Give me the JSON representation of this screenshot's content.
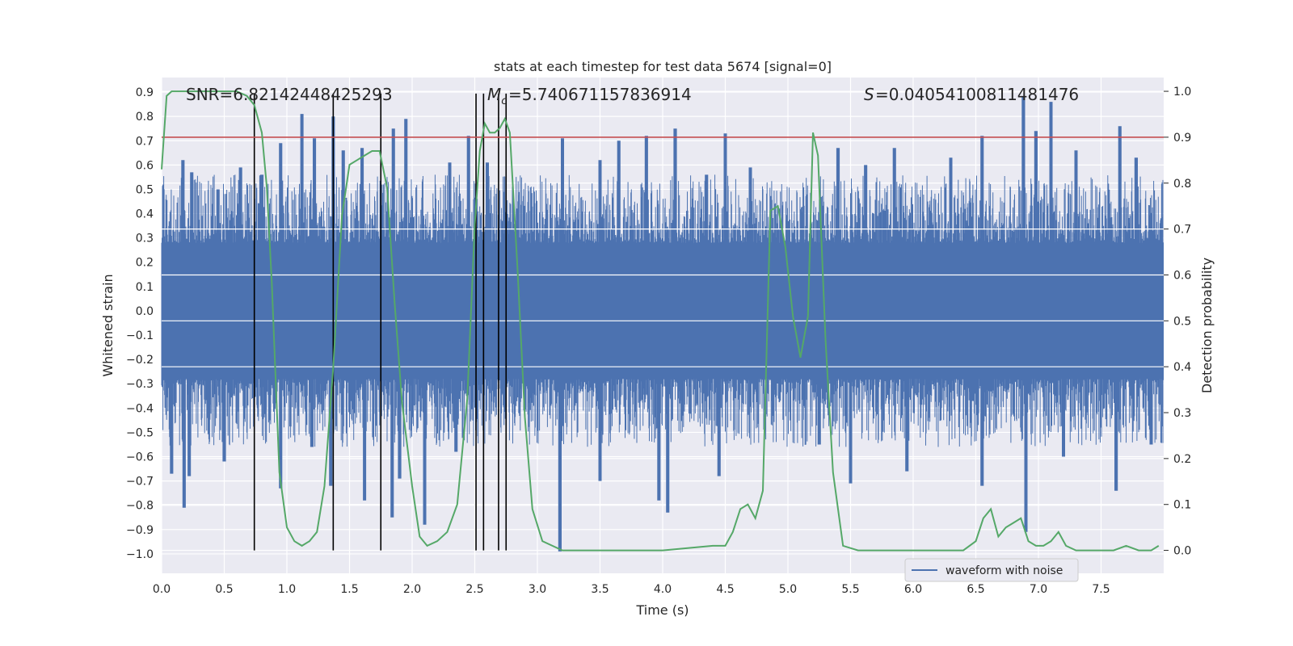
{
  "chart_data": {
    "type": "line",
    "title": "stats at each timestep for test data 5674 [signal=0]",
    "xlabel": "Time (s)",
    "ylabel": "Whitened strain",
    "ylabel_right": "Detection probability",
    "xlim": [
      0,
      8
    ],
    "ylim_left": [
      -1.08,
      0.96
    ],
    "ylim_right": [
      -0.05,
      1.03
    ],
    "x_ticks": [
      "0.0",
      "0.5",
      "1.0",
      "1.5",
      "2.0",
      "2.5",
      "3.0",
      "3.5",
      "4.0",
      "4.5",
      "5.0",
      "5.5",
      "6.0",
      "6.5",
      "7.0",
      "7.5"
    ],
    "y_ticks_left": [
      "0.9",
      "0.8",
      "0.7",
      "0.6",
      "0.5",
      "0.4",
      "0.3",
      "0.2",
      "0.1",
      "0.0",
      "-0.1",
      "-0.2",
      "-0.3",
      "-0.4",
      "-0.5",
      "-0.6",
      "-0.7",
      "-0.8",
      "-0.9",
      "-1.0"
    ],
    "y_ticks_right": [
      "1.0",
      "0.9",
      "0.8",
      "0.7",
      "0.6",
      "0.5",
      "0.4",
      "0.3",
      "0.2",
      "0.1",
      "0.0"
    ],
    "annotations": {
      "snr": "SNR=6.82142448425293",
      "mc": "=5.740671157836914",
      "s": "=0.04054100811481476"
    },
    "threshold": 0.9,
    "grid": true,
    "legend_position": "lower-right",
    "colors": {
      "waveform": "#4c72b0",
      "probability": "#55a868",
      "threshold": "#c44e52",
      "markers": "#000000",
      "background": "#eaeaf2",
      "grid": "#ffffff"
    },
    "vertical_markers_x": [
      0.74,
      1.37,
      1.75,
      2.51,
      2.57,
      2.69,
      2.75
    ],
    "series": [
      {
        "name": "waveform with noise",
        "axis": "left",
        "description_kind": "noise",
        "envelope_peaks": [
          {
            "x": 0.17,
            "y": 0.62
          },
          {
            "x": 0.24,
            "y": 0.57
          },
          {
            "x": 0.45,
            "y": 0.5
          },
          {
            "x": 0.63,
            "y": 0.59
          },
          {
            "x": 0.8,
            "y": 0.56
          },
          {
            "x": 0.95,
            "y": 0.69
          },
          {
            "x": 1.12,
            "y": 0.81
          },
          {
            "x": 1.22,
            "y": 0.71
          },
          {
            "x": 1.37,
            "y": 0.8
          },
          {
            "x": 1.45,
            "y": 0.66
          },
          {
            "x": 1.6,
            "y": 0.67
          },
          {
            "x": 1.85,
            "y": 0.75
          },
          {
            "x": 1.95,
            "y": 0.79
          },
          {
            "x": 2.3,
            "y": 0.61
          },
          {
            "x": 2.45,
            "y": 0.72
          },
          {
            "x": 2.6,
            "y": 0.61
          },
          {
            "x": 3.2,
            "y": 0.71
          },
          {
            "x": 3.5,
            "y": 0.62
          },
          {
            "x": 3.65,
            "y": 0.7
          },
          {
            "x": 3.87,
            "y": 0.72
          },
          {
            "x": 4.1,
            "y": 0.75
          },
          {
            "x": 4.35,
            "y": 0.56
          },
          {
            "x": 4.5,
            "y": 0.73
          },
          {
            "x": 4.7,
            "y": 0.59
          },
          {
            "x": 5.4,
            "y": 0.67
          },
          {
            "x": 5.62,
            "y": 0.6
          },
          {
            "x": 5.85,
            "y": 0.67
          },
          {
            "x": 6.3,
            "y": 0.63
          },
          {
            "x": 6.55,
            "y": 0.72
          },
          {
            "x": 6.88,
            "y": 0.88
          },
          {
            "x": 6.98,
            "y": 0.74
          },
          {
            "x": 7.1,
            "y": 0.86
          },
          {
            "x": 7.3,
            "y": 0.66
          },
          {
            "x": 7.65,
            "y": 0.76
          },
          {
            "x": 7.78,
            "y": 0.63
          }
        ],
        "envelope_troughs": [
          {
            "x": 0.08,
            "y": -0.67
          },
          {
            "x": 0.18,
            "y": -0.81
          },
          {
            "x": 0.22,
            "y": -0.68
          },
          {
            "x": 0.5,
            "y": -0.62
          },
          {
            "x": 0.95,
            "y": -0.73
          },
          {
            "x": 1.2,
            "y": -0.56
          },
          {
            "x": 1.35,
            "y": -0.72
          },
          {
            "x": 1.62,
            "y": -0.78
          },
          {
            "x": 1.84,
            "y": -0.85
          },
          {
            "x": 1.9,
            "y": -0.69
          },
          {
            "x": 2.1,
            "y": -0.88
          },
          {
            "x": 2.35,
            "y": -0.58
          },
          {
            "x": 3.18,
            "y": -0.99
          },
          {
            "x": 3.5,
            "y": -0.7
          },
          {
            "x": 3.97,
            "y": -0.78
          },
          {
            "x": 4.04,
            "y": -0.83
          },
          {
            "x": 4.45,
            "y": -0.68
          },
          {
            "x": 5.25,
            "y": -0.55
          },
          {
            "x": 5.5,
            "y": -0.71
          },
          {
            "x": 5.95,
            "y": -0.66
          },
          {
            "x": 6.55,
            "y": -0.72
          },
          {
            "x": 6.9,
            "y": -0.91
          },
          {
            "x": 7.2,
            "y": -0.6
          },
          {
            "x": 7.62,
            "y": -0.74
          },
          {
            "x": 7.9,
            "y": -0.55
          }
        ]
      },
      {
        "name": "",
        "axis": "right",
        "x": [
          0.0,
          0.04,
          0.08,
          0.12,
          0.16,
          0.2,
          0.4,
          0.6,
          0.68,
          0.74,
          0.8,
          0.84,
          0.88,
          0.94,
          1.0,
          1.06,
          1.12,
          1.18,
          1.24,
          1.3,
          1.37,
          1.44,
          1.5,
          1.56,
          1.62,
          1.68,
          1.74,
          1.8,
          1.86,
          1.92,
          2.0,
          2.06,
          2.12,
          2.2,
          2.28,
          2.36,
          2.44,
          2.5,
          2.54,
          2.58,
          2.62,
          2.66,
          2.7,
          2.74,
          2.78,
          2.84,
          2.9,
          2.96,
          3.04,
          3.2,
          3.6,
          4.0,
          4.4,
          4.5,
          4.56,
          4.62,
          4.68,
          4.74,
          4.8,
          4.86,
          4.92,
          4.98,
          5.04,
          5.1,
          5.16,
          5.2,
          5.24,
          5.3,
          5.36,
          5.44,
          5.56,
          6.0,
          6.4,
          6.5,
          6.56,
          6.62,
          6.68,
          6.74,
          6.8,
          6.86,
          6.92,
          6.98,
          7.04,
          7.1,
          7.16,
          7.22,
          7.3,
          7.4,
          7.6,
          7.7,
          7.8,
          7.9,
          7.96
        ],
        "values": [
          0.83,
          0.99,
          1.0,
          1.0,
          1.0,
          1.0,
          1.0,
          1.0,
          0.99,
          0.97,
          0.91,
          0.79,
          0.58,
          0.17,
          0.05,
          0.02,
          0.01,
          0.02,
          0.04,
          0.14,
          0.4,
          0.73,
          0.84,
          0.85,
          0.86,
          0.87,
          0.87,
          0.79,
          0.54,
          0.32,
          0.14,
          0.03,
          0.01,
          0.02,
          0.04,
          0.1,
          0.33,
          0.71,
          0.87,
          0.93,
          0.91,
          0.91,
          0.92,
          0.94,
          0.91,
          0.62,
          0.29,
          0.09,
          0.02,
          0.0,
          0.0,
          0.0,
          0.01,
          0.01,
          0.04,
          0.09,
          0.1,
          0.07,
          0.13,
          0.74,
          0.75,
          0.66,
          0.51,
          0.42,
          0.51,
          0.91,
          0.86,
          0.46,
          0.17,
          0.01,
          0.0,
          0.0,
          0.0,
          0.02,
          0.07,
          0.09,
          0.03,
          0.05,
          0.06,
          0.07,
          0.02,
          0.01,
          0.01,
          0.02,
          0.04,
          0.01,
          0.0,
          0.0,
          0.0,
          0.01,
          0.0,
          0.0,
          0.01
        ]
      }
    ]
  }
}
